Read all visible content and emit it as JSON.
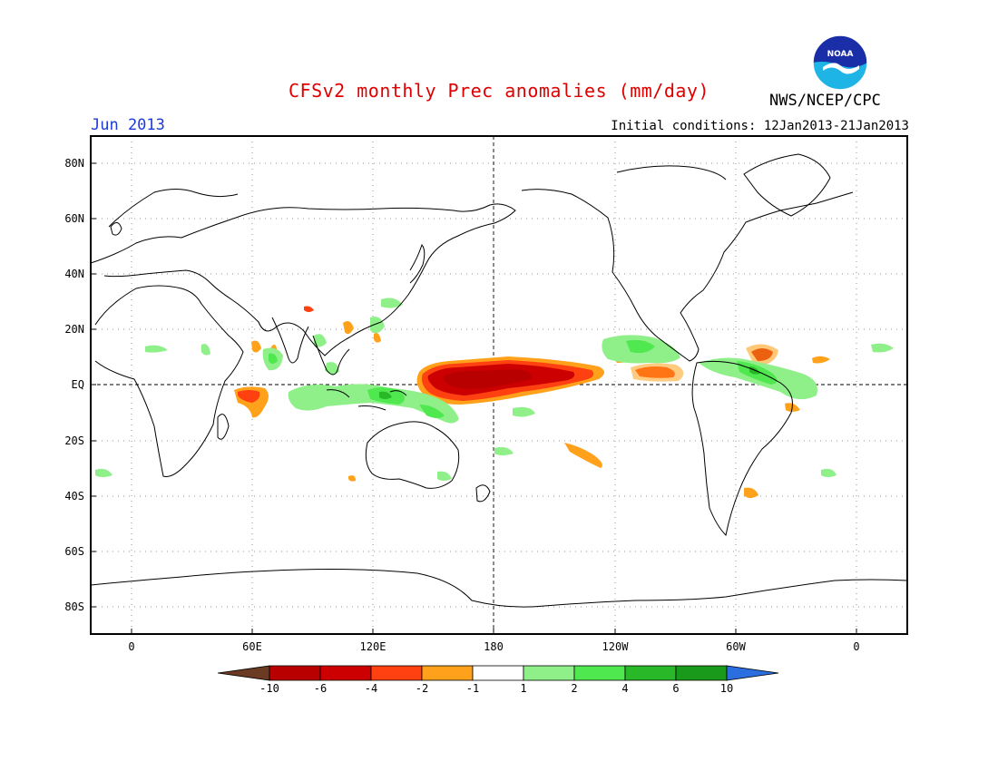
{
  "title": "CFSv2 monthly Prec anomalies (mm/day)",
  "month": "Jun 2013",
  "initial_conditions": "Initial conditions: 12Jan2013-21Jan2013",
  "agency": "NWS/NCEP/CPC",
  "logo_text": "NOAA",
  "lat_labels": [
    "80N",
    "60N",
    "40N",
    "20N",
    "EQ",
    "20S",
    "40S",
    "60S",
    "80S"
  ],
  "lon_labels": [
    "0",
    "60E",
    "120E",
    "180",
    "120W",
    "60W",
    "0"
  ],
  "colorbar": {
    "labels": [
      "-10",
      "-6",
      "-4",
      "-2",
      "-1",
      "1",
      "2",
      "4",
      "6",
      "10"
    ],
    "colors": [
      "#6b3a22",
      "#b80000",
      "#cc0000",
      "#ff4010",
      "#ffa11a",
      "#ffffff",
      "#8ff08a",
      "#4fe84f",
      "#28b828",
      "#1a9a1a",
      "#2a6ee0"
    ]
  },
  "anomaly_regions": [
    {
      "level": "-10",
      "color": "#b80000",
      "area": "central equatorial Pacific"
    },
    {
      "level": "-4",
      "color": "#ff4010",
      "area": "equatorial Pacific 150E-120W"
    },
    {
      "level": "-2",
      "color": "#ffa11a",
      "area": "western Indian Ocean, eastern tropical Pacific, South Pacific"
    },
    {
      "level": "2",
      "color": "#8ff08a",
      "area": "Maritime Continent, Indian Ocean, tropical Atlantic, Central America"
    },
    {
      "level": "4",
      "color": "#4fe84f",
      "area": "Indonesia, Central America, tropical Atlantic"
    }
  ]
}
